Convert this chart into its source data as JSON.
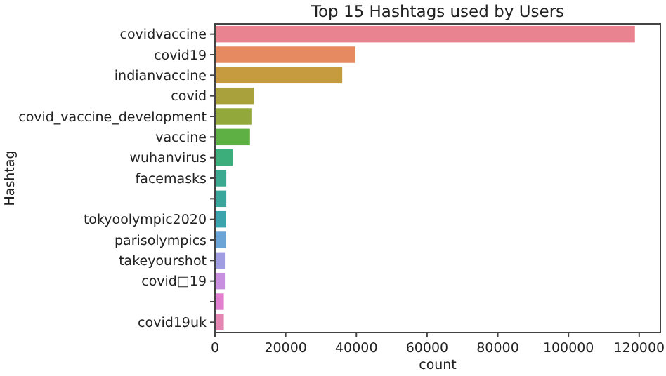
{
  "chart_data": {
    "type": "bar",
    "orientation": "horizontal",
    "title": "Top 15 Hashtags used by Users",
    "xlabel": "count",
    "ylabel": "Hashtag",
    "categories": [
      "covidvaccine",
      "covid19",
      "indianvaccine",
      "covid",
      "covid_vaccine_development",
      "vaccine",
      "wuhanvirus",
      "facemasks",
      null,
      "tokyoolympic2020",
      "parisolympics",
      "takeyourshot",
      "covid□19",
      null,
      "covid19uk"
    ],
    "values": [
      118800,
      39700,
      36000,
      11000,
      10300,
      9900,
      5000,
      3200,
      3200,
      3100,
      3100,
      2800,
      2800,
      2500,
      2500
    ],
    "colors": [
      "#e8838f",
      "#e68a62",
      "#c69a3e",
      "#a8a13c",
      "#93a83b",
      "#5eb044",
      "#3cae7c",
      "#3aa98f",
      "#39a69c",
      "#3aa3ab",
      "#6aa3d6",
      "#a09de2",
      "#c88fe0",
      "#e27fce",
      "#e585b2"
    ],
    "xlim": [
      0,
      126000
    ],
    "xticks": [
      0,
      20000,
      40000,
      60000,
      80000,
      100000,
      120000
    ],
    "grid": false
  }
}
